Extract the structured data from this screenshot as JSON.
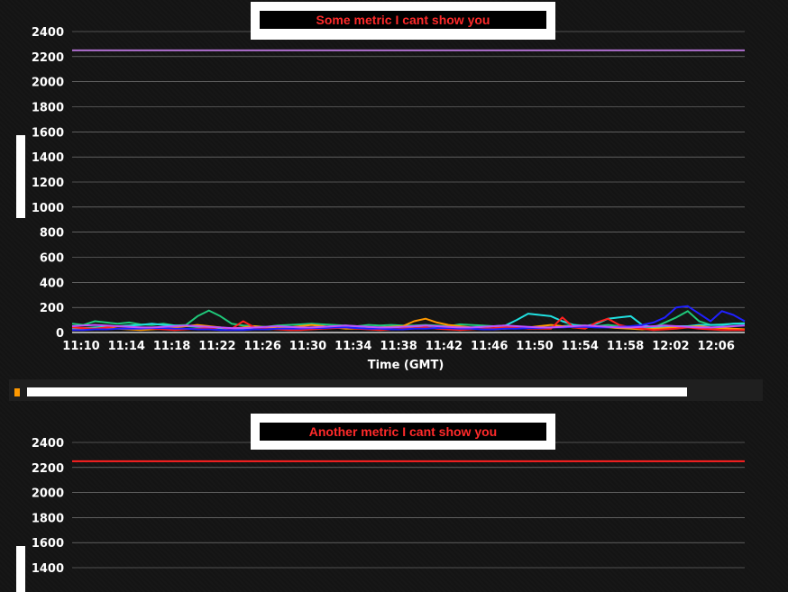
{
  "chart_data": [
    {
      "type": "line",
      "title": "Some metric I cant show you",
      "xlabel": "Time (GMT)",
      "ylabel": "",
      "ylim": [
        0,
        2400
      ],
      "y_ticks": [
        0,
        200,
        400,
        600,
        800,
        1000,
        1200,
        1400,
        1600,
        1800,
        2000,
        2200,
        2400
      ],
      "x_tick_labels": [
        "11:10",
        "11:14",
        "11:18",
        "11:22",
        "11:26",
        "11:30",
        "11:34",
        "11:38",
        "11:42",
        "11:46",
        "11:50",
        "11:54",
        "11:58",
        "12:02",
        "12:06"
      ],
      "grid": true,
      "threshold": {
        "value": 2250,
        "color": "#b070d0"
      },
      "series": [
        {
          "color": "#1fc87a",
          "values": [
            70,
            60,
            90,
            80,
            70,
            80,
            65,
            60,
            70,
            55,
            60,
            130,
            175,
            130,
            70,
            55,
            50,
            45,
            55,
            60,
            65,
            70,
            65,
            60,
            55,
            50,
            60,
            55,
            60,
            55,
            55,
            60,
            55,
            50,
            65,
            60,
            55,
            50,
            40,
            40,
            35,
            40,
            40,
            50,
            60,
            55,
            50,
            60,
            50,
            40,
            30,
            40,
            80,
            120,
            170,
            90,
            60,
            65,
            70,
            75
          ]
        },
        {
          "color": "#20e0e0",
          "values": [
            30,
            35,
            40,
            45,
            50,
            55,
            60,
            70,
            60,
            55,
            50,
            45,
            40,
            35,
            30,
            30,
            25,
            25,
            30,
            30,
            35,
            40,
            40,
            45,
            50,
            45,
            40,
            40,
            45,
            50,
            45,
            40,
            35,
            30,
            35,
            40,
            45,
            50,
            55,
            100,
            150,
            140,
            130,
            90,
            60,
            50,
            70,
            110,
            120,
            130,
            60,
            40,
            40,
            50,
            50,
            60,
            60,
            60,
            70,
            70
          ]
        },
        {
          "color": "#ff9900",
          "values": [
            20,
            25,
            30,
            35,
            30,
            25,
            20,
            25,
            30,
            40,
            50,
            60,
            50,
            40,
            30,
            40,
            50,
            40,
            35,
            40,
            50,
            60,
            50,
            40,
            30,
            30,
            35,
            40,
            45,
            50,
            90,
            110,
            80,
            60,
            50,
            40,
            30,
            25,
            30,
            35,
            40,
            50,
            60,
            50,
            40,
            45,
            50,
            40,
            35,
            30,
            25,
            30,
            35,
            40,
            45,
            50,
            40,
            35,
            30,
            25
          ]
        },
        {
          "color": "#ff2020",
          "values": [
            40,
            35,
            30,
            40,
            50,
            45,
            40,
            30,
            25,
            20,
            25,
            30,
            35,
            40,
            30,
            90,
            40,
            30,
            25,
            20,
            20,
            25,
            30,
            35,
            40,
            30,
            25,
            20,
            25,
            30,
            35,
            40,
            30,
            25,
            20,
            25,
            30,
            35,
            40,
            40,
            30,
            30,
            30,
            120,
            40,
            30,
            80,
            110,
            60,
            40,
            30,
            20,
            25,
            30,
            40,
            30,
            25,
            20,
            20,
            20
          ]
        },
        {
          "color": "#2020ff",
          "values": [
            20,
            20,
            25,
            25,
            30,
            30,
            30,
            35,
            35,
            30,
            30,
            25,
            25,
            20,
            20,
            20,
            25,
            25,
            30,
            30,
            30,
            35,
            35,
            40,
            40,
            35,
            30,
            30,
            25,
            25,
            30,
            30,
            35,
            35,
            30,
            30,
            25,
            25,
            30,
            30,
            35,
            35,
            40,
            40,
            45,
            45,
            40,
            40,
            45,
            50,
            60,
            80,
            120,
            200,
            210,
            150,
            90,
            170,
            140,
            90
          ]
        },
        {
          "color": "#c050ff",
          "values": [
            50,
            55,
            60,
            55,
            50,
            45,
            40,
            40,
            45,
            50,
            55,
            50,
            45,
            40,
            35,
            35,
            40,
            45,
            50,
            45,
            40,
            40,
            45,
            50,
            55,
            50,
            45,
            40,
            40,
            45,
            50,
            55,
            50,
            45,
            40,
            40,
            45,
            50,
            55,
            50,
            45,
            40,
            40,
            45,
            50,
            55,
            50,
            45,
            40,
            40,
            45,
            50,
            55,
            50,
            45,
            40,
            40,
            45,
            50,
            55
          ]
        }
      ]
    },
    {
      "type": "line",
      "title": "Another metric I cant show you",
      "ylim": [
        0,
        2400
      ],
      "y_ticks": [
        1400,
        1600,
        1800,
        2000,
        2200,
        2400
      ],
      "grid": true,
      "threshold": {
        "value": 2250,
        "color": "#ff2020"
      }
    }
  ]
}
